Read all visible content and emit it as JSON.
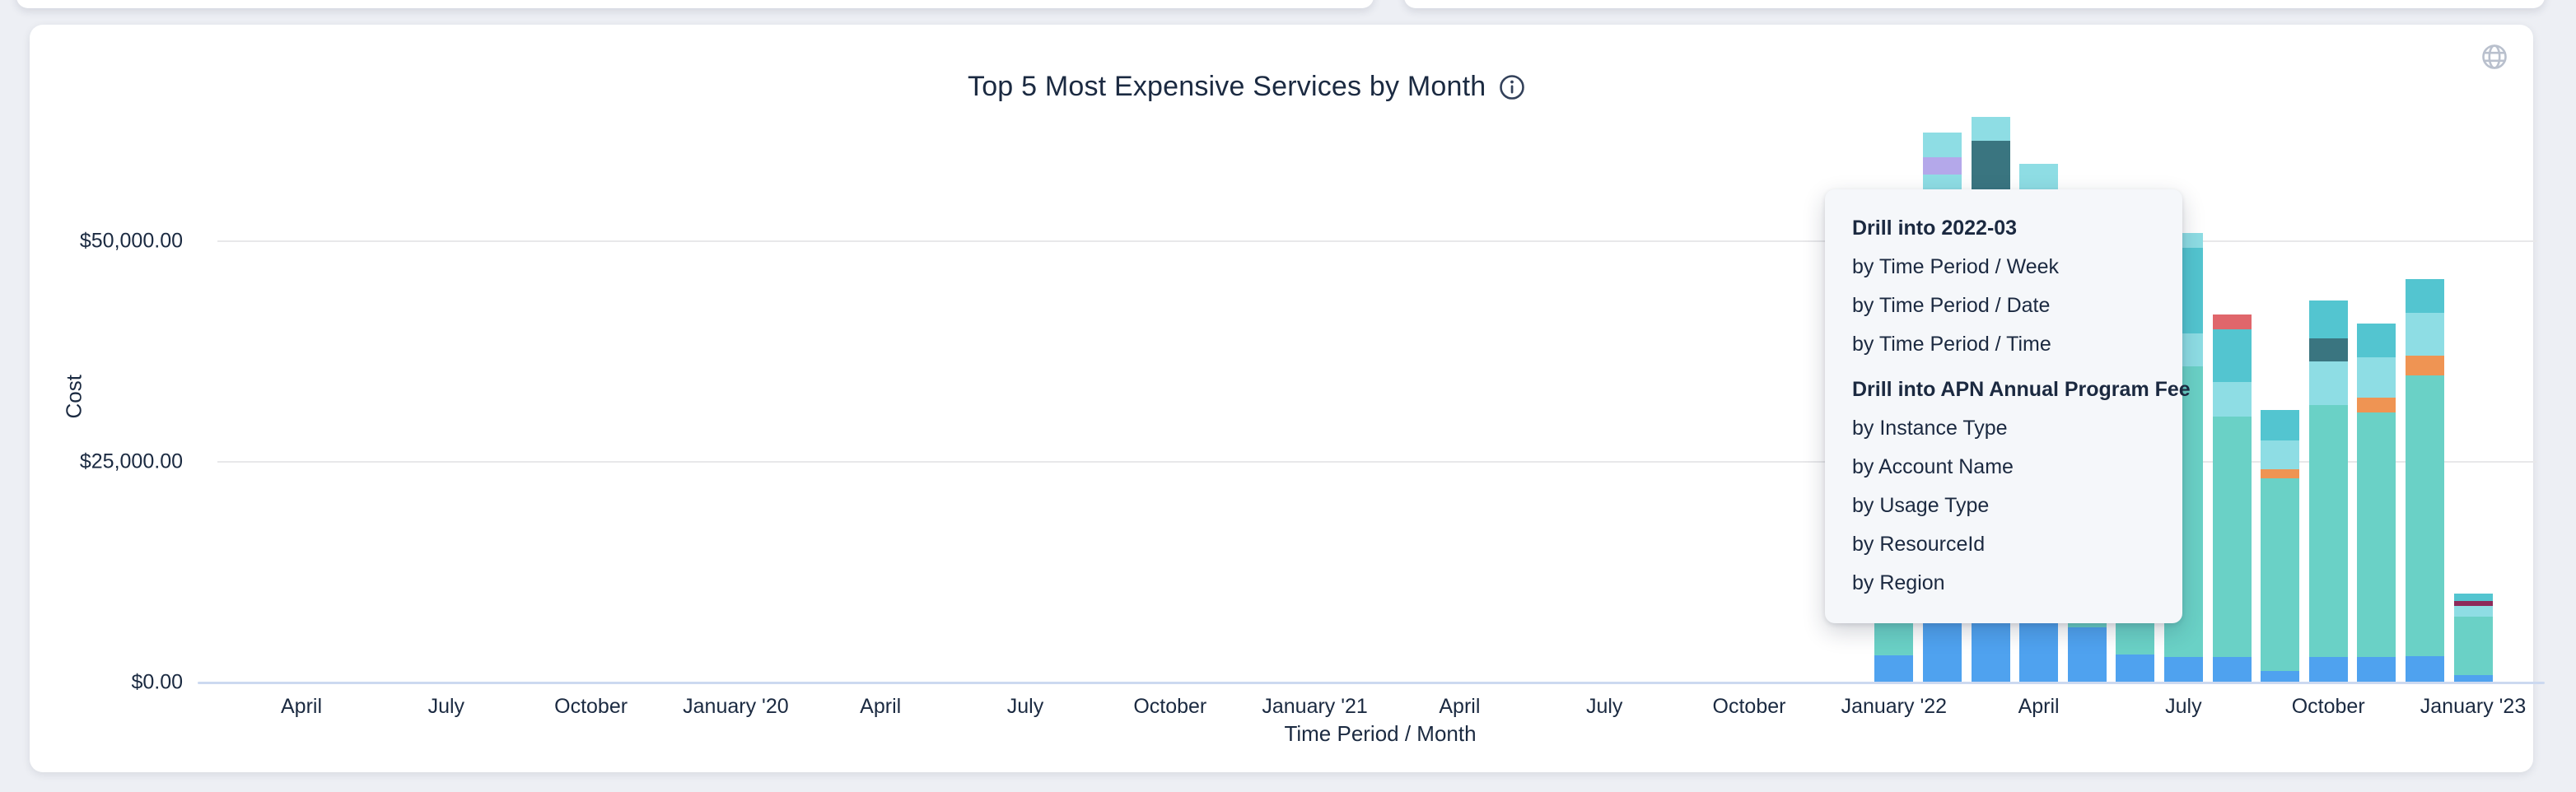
{
  "page": {
    "title": "Top 5 Most Expensive Services by Month",
    "icons": {
      "info": "info-circle-icon",
      "globe": "globe-icon"
    }
  },
  "chart_data": {
    "type": "bar",
    "stacked": true,
    "title": "Top 5 Most Expensive Services by Month",
    "xlabel": "Time Period / Month",
    "ylabel": "Cost",
    "ylim": [
      0,
      65000
    ],
    "grid": "horizontal",
    "legend": "none",
    "y_ticks": [
      {
        "label": "$0.00",
        "value": 0
      },
      {
        "label": "$25,000.00",
        "value": 25000
      },
      {
        "label": "$50,000.00",
        "value": 50000
      }
    ],
    "x_ticks": [
      {
        "label": "April",
        "month_offset": 0
      },
      {
        "label": "July",
        "month_offset": 3
      },
      {
        "label": "October",
        "month_offset": 6
      },
      {
        "label": "January '20",
        "month_offset": 9
      },
      {
        "label": "April",
        "month_offset": 12
      },
      {
        "label": "July",
        "month_offset": 15
      },
      {
        "label": "October",
        "month_offset": 18
      },
      {
        "label": "January '21",
        "month_offset": 21
      },
      {
        "label": "April",
        "month_offset": 24
      },
      {
        "label": "July",
        "month_offset": 27
      },
      {
        "label": "October",
        "month_offset": 30
      },
      {
        "label": "January '22",
        "month_offset": 33
      },
      {
        "label": "April",
        "month_offset": 36
      },
      {
        "label": "July",
        "month_offset": 39
      },
      {
        "label": "October",
        "month_offset": 42
      },
      {
        "label": "January '23",
        "month_offset": 45
      }
    ],
    "palette": {
      "blue": "#4fa2ef",
      "seafoam": "#6ad1c6",
      "lightcyan": "#8edde4",
      "teal": "#53c5d0",
      "darkteal": "#3a7580",
      "orange": "#ef9453",
      "red": "#e0666b",
      "purple": "#b4a8ea",
      "maroon": "#8e2a5a"
    },
    "bars": [
      {
        "month": "2022-01",
        "month_offset": 33,
        "total": 45000,
        "segments": [
          {
            "color": "blue",
            "value": 3000
          },
          {
            "color": "seafoam",
            "value": 34000
          },
          {
            "color": "lightcyan",
            "value": 5000
          },
          {
            "color": "teal",
            "value": 3000
          }
        ]
      },
      {
        "month": "2022-02",
        "month_offset": 34,
        "total": 62200,
        "segments": [
          {
            "color": "blue",
            "value": 7500
          },
          {
            "color": "seafoam",
            "value": 40000
          },
          {
            "color": "lightcyan",
            "value": 10000
          },
          {
            "color": "purple",
            "value": 1900
          },
          {
            "color": "lightcyan",
            "value": 2800
          }
        ]
      },
      {
        "month": "2022-03",
        "month_offset": 35,
        "total": 64000,
        "segments": [
          {
            "color": "blue",
            "value": 7500
          },
          {
            "color": "seafoam",
            "value": 37800
          },
          {
            "color": "lightcyan",
            "value": 8000
          },
          {
            "color": "darkteal",
            "value": 8000
          },
          {
            "color": "lightcyan",
            "value": 2700
          }
        ]
      },
      {
        "month": "2022-04",
        "month_offset": 36,
        "total": 58700,
        "segments": [
          {
            "color": "blue",
            "value": 7500
          },
          {
            "color": "seafoam",
            "value": 40000
          },
          {
            "color": "lightcyan",
            "value": 11200
          }
        ]
      },
      {
        "month": "2022-05",
        "month_offset": 37,
        "total": 35000,
        "segments": [
          {
            "color": "blue",
            "value": 6200
          },
          {
            "color": "seafoam",
            "value": 25000
          },
          {
            "color": "lightcyan",
            "value": 3800
          }
        ]
      },
      {
        "month": "2022-06",
        "month_offset": 38,
        "total": 42000,
        "segments": [
          {
            "color": "blue",
            "value": 3100
          },
          {
            "color": "seafoam",
            "value": 32000
          },
          {
            "color": "lightcyan",
            "value": 4500
          },
          {
            "color": "teal",
            "value": 2400
          }
        ]
      },
      {
        "month": "2022-07",
        "month_offset": 39,
        "total": 50800,
        "segments": [
          {
            "color": "blue",
            "value": 2800
          },
          {
            "color": "seafoam",
            "value": 32900
          },
          {
            "color": "lightcyan",
            "value": 3800
          },
          {
            "color": "teal",
            "value": 9700
          },
          {
            "color": "lightcyan",
            "value": 1600
          }
        ]
      },
      {
        "month": "2022-08",
        "month_offset": 40,
        "total": 41600,
        "segments": [
          {
            "color": "blue",
            "value": 2800
          },
          {
            "color": "seafoam",
            "value": 27200
          },
          {
            "color": "lightcyan",
            "value": 4000
          },
          {
            "color": "teal",
            "value": 5900
          },
          {
            "color": "red",
            "value": 1700
          }
        ]
      },
      {
        "month": "2022-09",
        "month_offset": 41,
        "total": 30800,
        "segments": [
          {
            "color": "blue",
            "value": 1200
          },
          {
            "color": "seafoam",
            "value": 21800
          },
          {
            "color": "orange",
            "value": 1100
          },
          {
            "color": "lightcyan",
            "value": 3200
          },
          {
            "color": "teal",
            "value": 3500
          }
        ]
      },
      {
        "month": "2022-10",
        "month_offset": 42,
        "total": 43200,
        "segments": [
          {
            "color": "blue",
            "value": 2800
          },
          {
            "color": "seafoam",
            "value": 28500
          },
          {
            "color": "lightcyan",
            "value": 5000
          },
          {
            "color": "darkteal",
            "value": 2600
          },
          {
            "color": "teal",
            "value": 4300
          }
        ]
      },
      {
        "month": "2022-11",
        "month_offset": 43,
        "total": 40600,
        "segments": [
          {
            "color": "blue",
            "value": 2800
          },
          {
            "color": "seafoam",
            "value": 27700
          },
          {
            "color": "orange",
            "value": 1700
          },
          {
            "color": "lightcyan",
            "value": 4600
          },
          {
            "color": "teal",
            "value": 3800
          }
        ]
      },
      {
        "month": "2022-12",
        "month_offset": 44,
        "total": 45600,
        "segments": [
          {
            "color": "blue",
            "value": 2900
          },
          {
            "color": "seafoam",
            "value": 31800
          },
          {
            "color": "orange",
            "value": 2200
          },
          {
            "color": "lightcyan",
            "value": 4900
          },
          {
            "color": "teal",
            "value": 3800
          }
        ]
      },
      {
        "month": "2023-01",
        "month_offset": 45,
        "total": 10000,
        "segments": [
          {
            "color": "blue",
            "value": 700
          },
          {
            "color": "seafoam",
            "value": 6700
          },
          {
            "color": "lightcyan",
            "value": 1200
          },
          {
            "color": "maroon",
            "value": 500
          },
          {
            "color": "teal",
            "value": 900
          }
        ]
      }
    ]
  },
  "context_menu": {
    "items": [
      {
        "label": "Drill into 2022-03",
        "type": "header"
      },
      {
        "label": "by Time Period / Week",
        "type": "item"
      },
      {
        "label": "by Time Period / Date",
        "type": "item"
      },
      {
        "label": "by Time Period / Time",
        "type": "item"
      },
      {
        "label": "Drill into APN Annual Program Fee",
        "type": "header"
      },
      {
        "label": "by Instance Type",
        "type": "item"
      },
      {
        "label": "by Account Name",
        "type": "item"
      },
      {
        "label": "by Usage Type",
        "type": "item"
      },
      {
        "label": "by ResourceId",
        "type": "item"
      },
      {
        "label": "by Region",
        "type": "item"
      }
    ]
  }
}
